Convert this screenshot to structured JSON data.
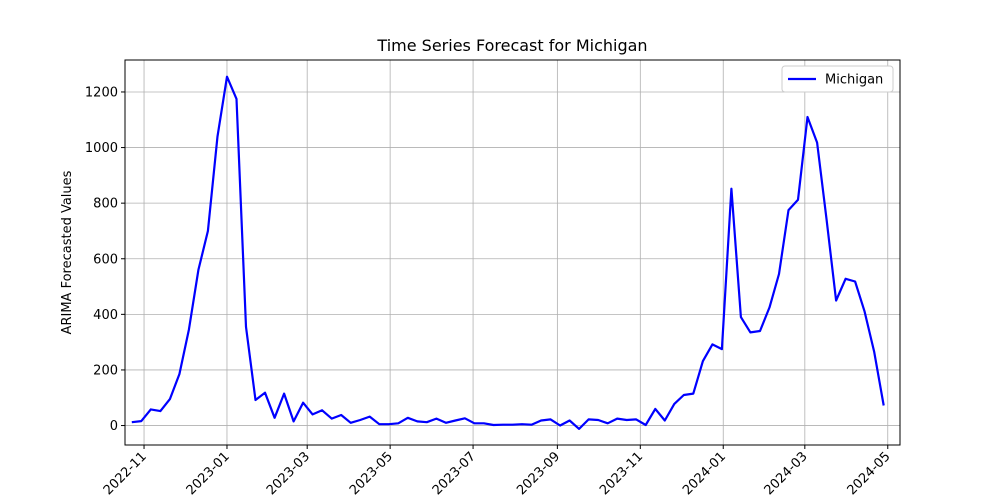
{
  "chart_data": {
    "type": "line",
    "title": "Time Series Forecast for Michigan",
    "xlabel": "",
    "ylabel": "ARIMA Forecasted Values",
    "x_axis_type": "date",
    "xlim": [
      "2022-10-18",
      "2024-05-10"
    ],
    "ylim": [
      -70,
      1315
    ],
    "xticks": [
      "2022-11",
      "2023-01",
      "2023-03",
      "2023-05",
      "2023-07",
      "2023-09",
      "2023-11",
      "2024-01",
      "2024-03",
      "2024-05"
    ],
    "yticks": [
      0,
      200,
      400,
      600,
      800,
      1000,
      1200
    ],
    "grid": true,
    "legend_position": "upper right",
    "colors": {
      "series": "#0000ff",
      "grid": "#b0b0b0",
      "axis": "#000000"
    },
    "series": [
      {
        "name": "Michigan",
        "x": [
          "2022-10-23",
          "2022-10-30",
          "2022-11-06",
          "2022-11-13",
          "2022-11-20",
          "2022-11-27",
          "2022-12-04",
          "2022-12-11",
          "2022-12-18",
          "2022-12-25",
          "2023-01-01",
          "2023-01-08",
          "2023-01-15",
          "2023-01-22",
          "2023-01-29",
          "2023-02-05",
          "2023-02-12",
          "2023-02-19",
          "2023-02-26",
          "2023-03-05",
          "2023-03-12",
          "2023-03-19",
          "2023-03-26",
          "2023-04-02",
          "2023-04-09",
          "2023-04-16",
          "2023-04-23",
          "2023-04-30",
          "2023-05-07",
          "2023-05-14",
          "2023-05-21",
          "2023-05-28",
          "2023-06-04",
          "2023-06-11",
          "2023-06-18",
          "2023-06-25",
          "2023-07-02",
          "2023-07-09",
          "2023-07-16",
          "2023-07-23",
          "2023-07-30",
          "2023-08-06",
          "2023-08-13",
          "2023-08-20",
          "2023-08-27",
          "2023-09-03",
          "2023-09-10",
          "2023-09-17",
          "2023-09-24",
          "2023-10-01",
          "2023-10-08",
          "2023-10-15",
          "2023-10-22",
          "2023-10-29",
          "2023-11-05",
          "2023-11-12",
          "2023-11-19",
          "2023-11-26",
          "2023-12-03",
          "2023-12-10",
          "2023-12-17",
          "2023-12-24",
          "2023-12-31",
          "2024-01-07",
          "2024-01-14",
          "2024-01-21",
          "2024-01-28",
          "2024-02-04",
          "2024-02-11",
          "2024-02-18",
          "2024-02-25",
          "2024-03-03",
          "2024-03-10",
          "2024-03-17",
          "2024-03-24",
          "2024-03-31",
          "2024-04-07",
          "2024-04-14",
          "2024-04-21",
          "2024-04-28"
        ],
        "values": [
          12,
          16,
          58,
          52,
          95,
          185,
          345,
          560,
          700,
          1040,
          1255,
          1175,
          355,
          92,
          118,
          28,
          115,
          15,
          82,
          40,
          55,
          25,
          38,
          10,
          20,
          32,
          5,
          5,
          8,
          28,
          15,
          12,
          25,
          10,
          18,
          26,
          8,
          8,
          2,
          3,
          3,
          5,
          3,
          18,
          22,
          0,
          18,
          -12,
          22,
          20,
          8,
          25,
          20,
          22,
          2,
          60,
          18,
          78,
          110,
          115,
          232,
          292,
          275,
          852,
          390,
          335,
          340,
          425,
          545,
          775,
          812,
          1110,
          1018,
          740,
          450,
          528,
          518,
          410,
          265,
          72
        ]
      }
    ]
  }
}
